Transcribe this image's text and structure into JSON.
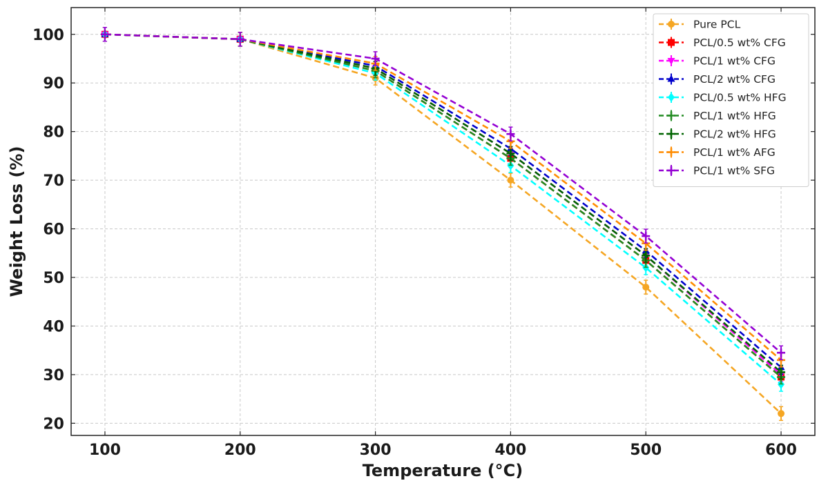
{
  "chart_data": {
    "type": "line",
    "title": "",
    "xlabel": "Temperature (°C)",
    "ylabel": "Weight Loss (%)",
    "x": [
      100,
      200,
      300,
      400,
      500,
      600
    ],
    "xticks": [
      "100",
      "200",
      "300",
      "400",
      "500",
      "600"
    ],
    "yticks": [
      "20",
      "30",
      "40",
      "50",
      "60",
      "70",
      "80",
      "90",
      "100"
    ],
    "xlim": [
      75,
      625
    ],
    "ylim": [
      17.5,
      105.5
    ],
    "grid": true,
    "legend_position": "top-right",
    "series": [
      {
        "name": "Pure PCL",
        "color": "#F5A623",
        "marker": "circle",
        "values": [
          100,
          99,
          91,
          70,
          48,
          22
        ]
      },
      {
        "name": "PCL/0.5 wt% CFG",
        "color": "#FF0000",
        "marker": "square",
        "values": [
          100,
          99,
          92.5,
          74.5,
          53.5,
          29.5
        ]
      },
      {
        "name": "PCL/1 wt% CFG",
        "color": "#FF00FF",
        "marker": "triangle-down",
        "values": [
          100,
          99,
          93,
          75.5,
          54.5,
          30
        ]
      },
      {
        "name": "PCL/2 wt% CFG",
        "color": "#0000CC",
        "marker": "triangle-up",
        "values": [
          100,
          99,
          93.5,
          76.5,
          55.5,
          31.5
        ]
      },
      {
        "name": "PCL/0.5 wt% HFG",
        "color": "#00FFFF",
        "marker": "diamond",
        "values": [
          100,
          99,
          92,
          73,
          52,
          28
        ]
      },
      {
        "name": "PCL/1 wt% HFG",
        "color": "#228B22",
        "marker": "plus",
        "values": [
          100,
          99,
          92.5,
          74.5,
          53.5,
          29.5
        ]
      },
      {
        "name": "PCL/2 wt% HFG",
        "color": "#006400",
        "marker": "plus",
        "values": [
          100,
          99,
          93,
          75.5,
          54.5,
          30.5
        ]
      },
      {
        "name": "PCL/1 wt% AFG",
        "color": "#FF8C00",
        "marker": "plus",
        "values": [
          100,
          99,
          94,
          78,
          57,
          33
        ]
      },
      {
        "name": "PCL/1 wt% SFG",
        "color": "#9400D3",
        "marker": "plus",
        "values": [
          100,
          99,
          95,
          79.5,
          58.5,
          34.5
        ]
      }
    ]
  }
}
